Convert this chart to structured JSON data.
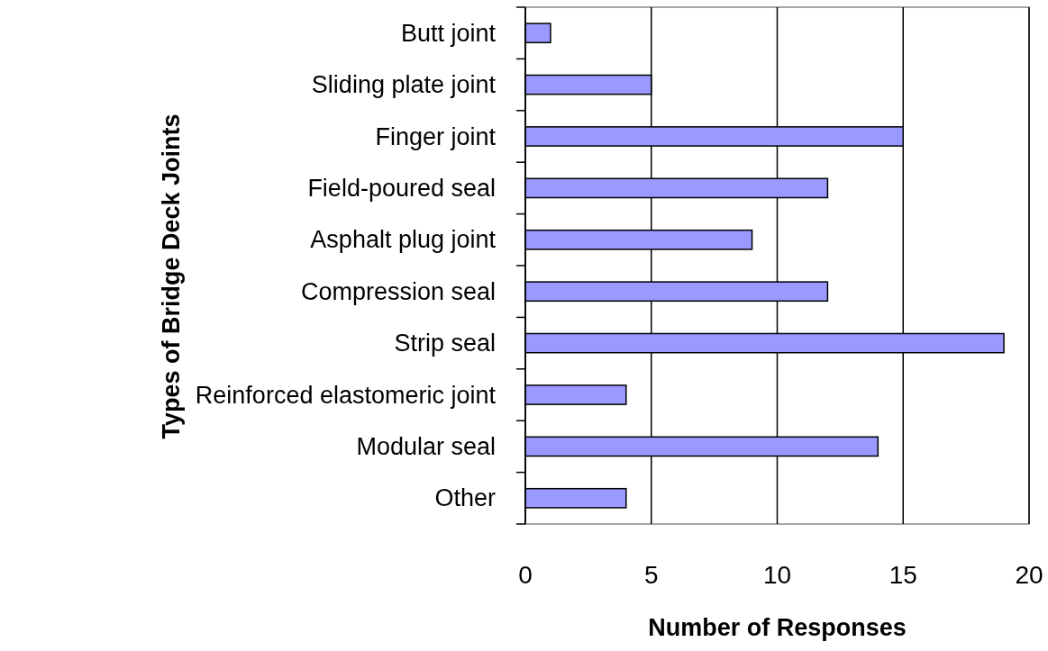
{
  "chart_data": {
    "type": "bar",
    "orientation": "horizontal",
    "xlabel": "Number of Responses",
    "ylabel": "Types of Bridge Deck Joints",
    "categories": [
      "Butt joint",
      "Sliding plate joint",
      "Finger joint",
      "Field-poured seal",
      "Asphalt plug joint",
      "Compression seal",
      "Strip seal",
      "Reinforced elastomeric joint",
      "Modular seal",
      "Other"
    ],
    "values": [
      1,
      5,
      15,
      12,
      9,
      12,
      19,
      4,
      14,
      4
    ],
    "color": "#9999ff",
    "xlim": [
      0,
      20
    ],
    "xticks": [
      0,
      5,
      10,
      15,
      20
    ],
    "grid": "x"
  }
}
